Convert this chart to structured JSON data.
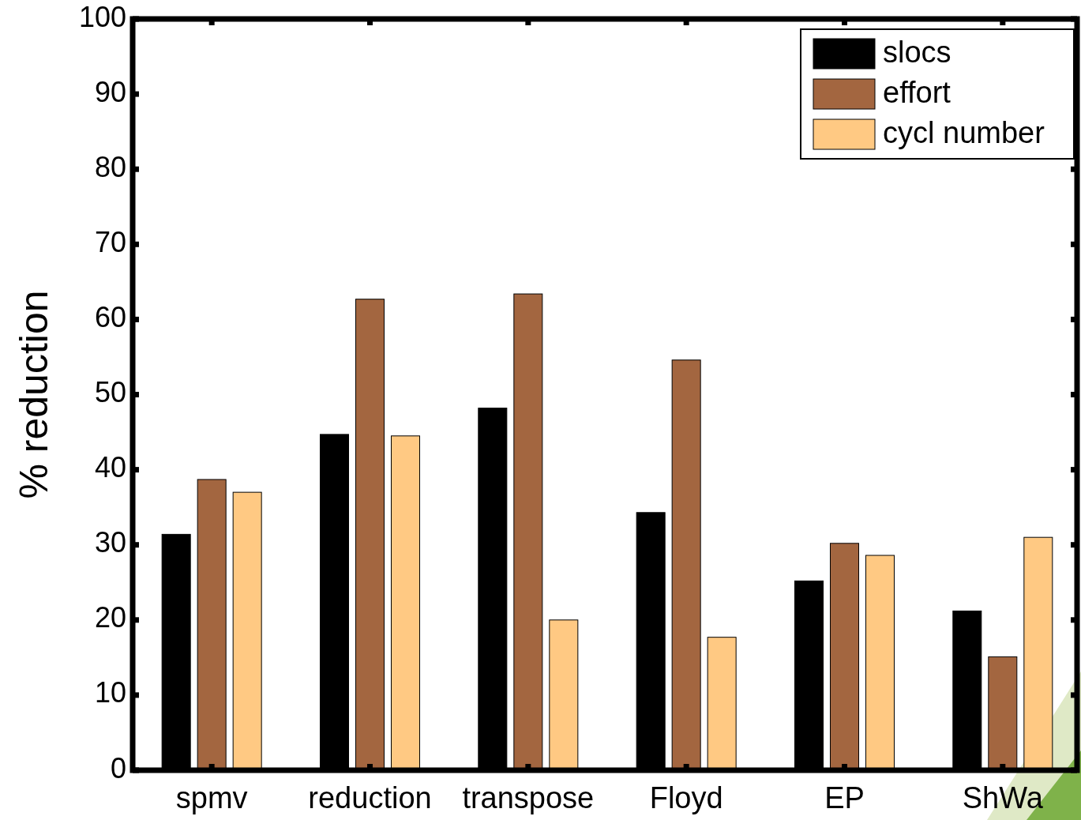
{
  "chart_data": {
    "type": "bar",
    "ylabel": "% reduction",
    "categories": [
      "spmv",
      "reduction",
      "transpose",
      "Floyd",
      "EP",
      "ShWa"
    ],
    "series": [
      {
        "name": "slocs",
        "color": "#000000",
        "values": [
          31.4,
          44.7,
          48.2,
          34.3,
          25.2,
          21.2
        ]
      },
      {
        "name": "effort",
        "color": "#a36640",
        "values": [
          38.7,
          62.7,
          63.4,
          54.6,
          30.2,
          15.1
        ]
      },
      {
        "name": "cycl number",
        "color": "#ffc983",
        "values": [
          37.0,
          44.5,
          20.0,
          17.7,
          28.6,
          31.0
        ]
      }
    ],
    "ylim": [
      0,
      100
    ],
    "yticks": [
      0,
      10,
      20,
      30,
      40,
      50,
      60,
      70,
      80,
      90,
      100
    ],
    "legend": "top right",
    "grid": false
  }
}
